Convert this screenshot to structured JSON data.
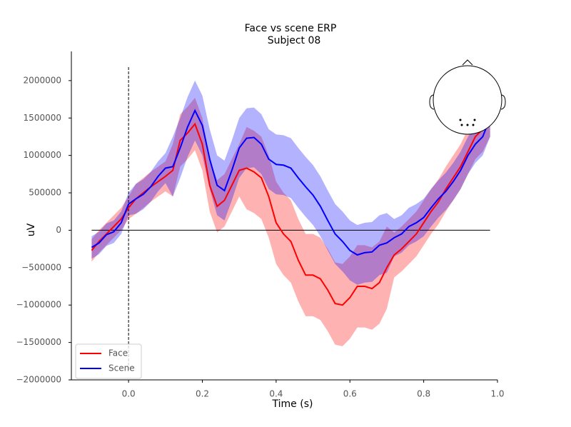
{
  "chart_data": {
    "type": "line-band",
    "title": "Face vs scene ERP",
    "subtitle": "Subject 08",
    "x_label": "Time (s)",
    "y_label": "uV",
    "xlim": [
      -0.155,
      1.0
    ],
    "ylim": [
      -2000000,
      2390000
    ],
    "xticks": [
      {
        "value": 0,
        "label": "0.0"
      },
      0.2,
      0.4,
      0.6,
      0.8,
      {
        "value": 1,
        "label": "1.0"
      }
    ],
    "yticks": [
      {
        "value": -2000000,
        "label": "−2000000"
      },
      {
        "value": -1500000,
        "label": "−1500000"
      },
      {
        "value": -1000000,
        "label": "−1000000"
      },
      {
        "value": -500000,
        "label": "−500000"
      },
      0,
      500000,
      1000000,
      1500000,
      2000000
    ],
    "vlines": [
      0
    ],
    "hlines": [
      0
    ],
    "legend": "lower left",
    "x": [
      -0.1,
      -0.08,
      -0.06,
      -0.04,
      -0.02,
      0,
      0.02,
      0.04,
      0.06,
      0.08,
      0.1,
      0.12,
      0.14,
      0.16,
      0.18,
      0.2,
      0.22,
      0.24,
      0.26,
      0.28,
      0.3,
      0.32,
      0.34,
      0.36,
      0.38,
      0.4,
      0.42,
      0.44,
      0.46,
      0.48,
      0.5,
      0.52,
      0.54,
      0.56,
      0.58,
      0.6,
      0.62,
      0.64,
      0.66,
      0.68,
      0.7,
      0.72,
      0.74,
      0.76,
      0.78,
      0.8,
      0.82,
      0.84,
      0.86,
      0.88,
      0.9,
      0.92,
      0.94,
      0.96,
      0.98
    ],
    "series": [
      {
        "name": "Face",
        "color": "#ff0000",
        "values": [
          -270000,
          -150000,
          -50000,
          50000,
          150000,
          300000,
          420000,
          500000,
          580000,
          650000,
          720000,
          800000,
          1200000,
          1300000,
          1420000,
          1150000,
          600000,
          320000,
          400000,
          600000,
          800000,
          830000,
          780000,
          700000,
          450000,
          100000,
          -50000,
          -150000,
          -400000,
          -600000,
          -600000,
          -650000,
          -800000,
          -980000,
          -1000000,
          -900000,
          -750000,
          -750000,
          -780000,
          -700000,
          -500000,
          -330000,
          -250000,
          -150000,
          -50000,
          100000,
          250000,
          380000,
          550000,
          700000,
          850000,
          1050000,
          1250000,
          1350000,
          1550000
        ],
        "lower": [
          -420000,
          -300000,
          -200000,
          -100000,
          0,
          150000,
          220000,
          300000,
          380000,
          450000,
          520000,
          450000,
          850000,
          950000,
          1070000,
          800000,
          250000,
          -30000,
          50000,
          250000,
          450000,
          280000,
          230000,
          150000,
          -100000,
          -450000,
          -600000,
          -700000,
          -950000,
          -1150000,
          -1150000,
          -1200000,
          -1350000,
          -1530000,
          -1550000,
          -1450000,
          -1300000,
          -1300000,
          -1330000,
          -1250000,
          -1050000,
          -630000,
          -550000,
          -450000,
          -350000,
          -200000,
          -50000,
          80000,
          250000,
          400000,
          550000,
          750000,
          950000,
          1050000,
          1250000
        ],
        "upper": [
          -120000,
          0,
          100000,
          200000,
          300000,
          450000,
          620000,
          700000,
          780000,
          850000,
          920000,
          1150000,
          1550000,
          1650000,
          1770000,
          1500000,
          950000,
          670000,
          750000,
          950000,
          1150000,
          1380000,
          1330000,
          1250000,
          1000000,
          650000,
          500000,
          400000,
          150000,
          -50000,
          -50000,
          -100000,
          -250000,
          -430000,
          -450000,
          -350000,
          -200000,
          -200000,
          -230000,
          -150000,
          50000,
          -30000,
          50000,
          150000,
          250000,
          400000,
          550000,
          680000,
          850000,
          1000000,
          1150000,
          1350000,
          1550000,
          1650000,
          1850000
        ]
      },
      {
        "name": "Scene",
        "color": "#0000ff",
        "values": [
          -230000,
          -170000,
          -60000,
          -20000,
          100000,
          350000,
          420000,
          480000,
          580000,
          720000,
          830000,
          850000,
          1100000,
          1380000,
          1600000,
          1400000,
          950000,
          600000,
          530000,
          800000,
          1100000,
          1230000,
          1240000,
          1150000,
          950000,
          880000,
          870000,
          830000,
          700000,
          580000,
          470000,
          320000,
          130000,
          -50000,
          -150000,
          -270000,
          -330000,
          -300000,
          -290000,
          -200000,
          -170000,
          -100000,
          -50000,
          50000,
          100000,
          170000,
          300000,
          420000,
          520000,
          650000,
          800000,
          1000000,
          1150000,
          1250000,
          1500000
        ],
        "lower": [
          -380000,
          -320000,
          -210000,
          -170000,
          -50000,
          200000,
          220000,
          280000,
          380000,
          520000,
          630000,
          450000,
          700000,
          980000,
          1200000,
          1000000,
          550000,
          200000,
          130000,
          400000,
          700000,
          830000,
          840000,
          750000,
          550000,
          480000,
          470000,
          430000,
          300000,
          180000,
          70000,
          -80000,
          -270000,
          -450000,
          -550000,
          -670000,
          -730000,
          -700000,
          -690000,
          -600000,
          -570000,
          -350000,
          -300000,
          -200000,
          -150000,
          -80000,
          50000,
          170000,
          270000,
          400000,
          550000,
          750000,
          900000,
          1000000,
          1250000
        ],
        "upper": [
          -80000,
          -20000,
          90000,
          130000,
          250000,
          500000,
          620000,
          680000,
          780000,
          920000,
          1030000,
          1250000,
          1500000,
          1780000,
          2000000,
          1800000,
          1350000,
          1000000,
          930000,
          1200000,
          1500000,
          1630000,
          1640000,
          1550000,
          1350000,
          1280000,
          1270000,
          1230000,
          1100000,
          980000,
          870000,
          720000,
          530000,
          350000,
          250000,
          130000,
          70000,
          100000,
          110000,
          200000,
          230000,
          150000,
          200000,
          300000,
          350000,
          420000,
          550000,
          670000,
          770000,
          900000,
          1050000,
          1250000,
          1400000,
          1500000,
          1750000
        ]
      }
    ]
  }
}
